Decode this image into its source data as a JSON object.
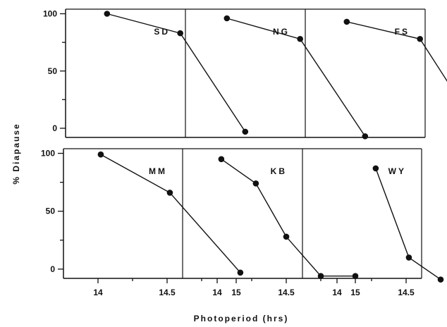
{
  "chart_data": {
    "type": "line",
    "xlabel": "Photoperiod  (hrs)",
    "ylabel": "% Diapause",
    "x_ticks": [
      "14",
      "14.5",
      "15"
    ],
    "y_ticks": [
      "0",
      "50",
      "100"
    ],
    "xlim": [
      13.75,
      15.35
    ],
    "ylim": [
      -8,
      104
    ],
    "panels": [
      {
        "label": "SD",
        "x": [
          14.05,
          14.58,
          15.05
        ],
        "y": [
          100,
          83,
          -3
        ]
      },
      {
        "label": "NG",
        "x": [
          14.05,
          14.58,
          15.05
        ],
        "y": [
          96,
          78,
          -7
        ]
      },
      {
        "label": "FS",
        "x": [
          14.05,
          14.58,
          15.05
        ],
        "y": [
          93,
          78,
          -10
        ]
      },
      {
        "label": "MM",
        "x": [
          14.02,
          14.52,
          15.03
        ],
        "y": [
          99,
          66,
          -3
        ]
      },
      {
        "label": "KB",
        "x": [
          14.03,
          14.28,
          14.5,
          14.75,
          15.0
        ],
        "y": [
          95,
          74,
          28,
          -6,
          -6
        ]
      },
      {
        "label": "WY",
        "x": [
          14.28,
          14.52,
          14.75
        ],
        "y": [
          87,
          10,
          -9
        ]
      }
    ]
  }
}
